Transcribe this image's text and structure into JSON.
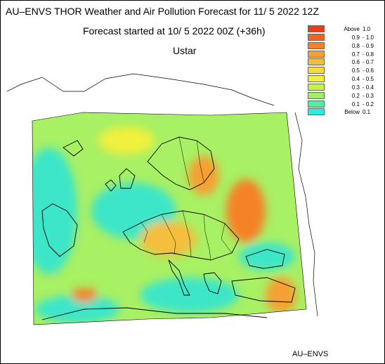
{
  "header": {
    "title": "AU–ENVS THOR Weather and Air Pollution Forecast for 11/ 5 2022  12Z",
    "subtitle": "Forecast started at 10/ 5 2022  00Z (+36h)",
    "parameter": "Ustar"
  },
  "legend": [
    {
      "from": "Above",
      "to": "1.0",
      "color": "#f03c14"
    },
    {
      "from": "0.9",
      "to": "- 1.0",
      "color": "#f5641e"
    },
    {
      "from": "0.8",
      "to": "- 0.9",
      "color": "#f58228"
    },
    {
      "from": "0.7",
      "to": "- 0.8",
      "color": "#f5a032"
    },
    {
      "from": "0.6",
      "to": "- 0.7",
      "color": "#f5be3c"
    },
    {
      "from": "0.5",
      "to": "- 0.6",
      "color": "#f5dc3c"
    },
    {
      "from": "0.4",
      "to": "- 0.5",
      "color": "#f0f03c"
    },
    {
      "from": "0.3",
      "to": "- 0.4",
      "color": "#c8f050"
    },
    {
      "from": "0.2",
      "to": "- 0.3",
      "color": "#a0f064"
    },
    {
      "from": "0.1",
      "to": "- 0.2",
      "color": "#50f0a0"
    },
    {
      "from": "Below",
      "to": "0.1",
      "color": "#28f0dc"
    }
  ],
  "footer": {
    "brand": "AU–ENVS"
  },
  "map": {
    "background_field_color": "#a8f064",
    "low_field_color": "#3ce6c8",
    "high_field_color": "#f5a032",
    "peak_field_color": "#f58228",
    "coastline_color": "#000000"
  }
}
